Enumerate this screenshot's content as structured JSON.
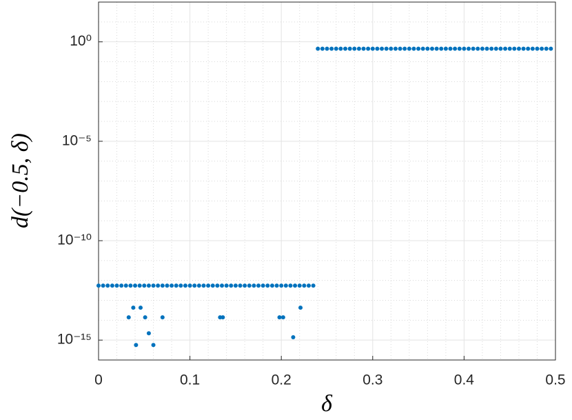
{
  "chart_data": {
    "type": "scatter",
    "xlabel": "δ",
    "ylabel": "d(−0.5, δ)",
    "xlim": [
      0,
      0.5
    ],
    "xticks": [
      0,
      0.1,
      0.2,
      0.3,
      0.4,
      0.5
    ],
    "xminorticks": [
      0.02,
      0.04,
      0.06,
      0.08,
      0.12,
      0.14,
      0.16,
      0.18,
      0.22,
      0.24,
      0.26,
      0.28,
      0.32,
      0.34,
      0.36,
      0.38,
      0.42,
      0.44,
      0.46,
      0.48
    ],
    "ylim": [
      1e-16,
      100
    ],
    "yscale": "log",
    "yticks": [
      {
        "value": 1e-15,
        "label": "10⁻¹⁵"
      },
      {
        "value": 1e-10,
        "label": "10⁻¹⁰"
      },
      {
        "value": 1e-05,
        "label": "10⁻⁵"
      },
      {
        "value": 1,
        "label": "10⁰"
      }
    ],
    "yminorticks": [
      1e-16,
      1e-14,
      1e-13,
      1e-12,
      1e-11,
      1e-09,
      1e-08,
      1e-07,
      1e-06,
      0.0001,
      0.001,
      0.01,
      0.1,
      10,
      100
    ],
    "grid": true,
    "minor_grid": true,
    "series": [
      {
        "color": "#0072bd",
        "x": [
          0,
          0.005,
          0.01,
          0.015,
          0.02,
          0.025,
          0.03,
          0.035,
          0.04,
          0.045,
          0.05,
          0.055,
          0.06,
          0.065,
          0.07,
          0.075,
          0.08,
          0.085,
          0.09,
          0.095,
          0.1,
          0.105,
          0.11,
          0.115,
          0.12,
          0.125,
          0.13,
          0.135,
          0.14,
          0.145,
          0.15,
          0.155,
          0.16,
          0.165,
          0.17,
          0.175,
          0.18,
          0.185,
          0.19,
          0.195,
          0.2,
          0.205,
          0.21,
          0.215,
          0.22,
          0.225,
          0.23,
          0.235,
          0.24,
          0.245,
          0.25,
          0.255,
          0.26,
          0.265,
          0.27,
          0.275,
          0.28,
          0.285,
          0.29,
          0.295,
          0.3,
          0.305,
          0.31,
          0.315,
          0.32,
          0.325,
          0.33,
          0.335,
          0.34,
          0.345,
          0.35,
          0.355,
          0.36,
          0.365,
          0.37,
          0.375,
          0.38,
          0.385,
          0.39,
          0.395,
          0.4,
          0.405,
          0.41,
          0.415,
          0.42,
          0.425,
          0.43,
          0.435,
          0.44,
          0.445,
          0.45,
          0.455,
          0.46,
          0.465,
          0.47,
          0.475,
          0.48,
          0.485,
          0.49,
          0.495,
          0.033,
          0.038,
          0.041,
          0.046,
          0.051,
          0.055,
          0.06,
          0.07,
          0.133,
          0.136,
          0.198,
          0.202,
          0.213,
          0.221
        ],
        "values": [
          5.5e-13,
          5.5e-13,
          5.5e-13,
          5.5e-13,
          5.5e-13,
          5.5e-13,
          5.5e-13,
          5.5e-13,
          5.5e-13,
          5.5e-13,
          5.5e-13,
          5.5e-13,
          5.5e-13,
          5.5e-13,
          5.5e-13,
          5.5e-13,
          5.5e-13,
          5.5e-13,
          5.5e-13,
          5.5e-13,
          5.5e-13,
          5.5e-13,
          5.5e-13,
          5.5e-13,
          5.5e-13,
          5.5e-13,
          5.5e-13,
          5.5e-13,
          5.5e-13,
          5.5e-13,
          5.5e-13,
          5.5e-13,
          5.5e-13,
          5.5e-13,
          5.5e-13,
          5.5e-13,
          5.5e-13,
          5.5e-13,
          5.5e-13,
          5.5e-13,
          5.5e-13,
          5.5e-13,
          5.5e-13,
          5.5e-13,
          5.5e-13,
          5.5e-13,
          5.5e-13,
          5.5e-13,
          0.45,
          0.45,
          0.45,
          0.45,
          0.45,
          0.45,
          0.45,
          0.45,
          0.45,
          0.45,
          0.45,
          0.45,
          0.45,
          0.45,
          0.45,
          0.45,
          0.45,
          0.45,
          0.45,
          0.45,
          0.45,
          0.45,
          0.45,
          0.45,
          0.45,
          0.45,
          0.45,
          0.45,
          0.45,
          0.45,
          0.45,
          0.45,
          0.45,
          0.45,
          0.45,
          0.45,
          0.45,
          0.45,
          0.45,
          0.45,
          0.45,
          0.45,
          0.45,
          0.45,
          0.45,
          0.45,
          0.45,
          0.45,
          0.45,
          0.45,
          0.45,
          0.45,
          1.4e-14,
          4.3e-14,
          5.7e-16,
          4.3e-14,
          1.4e-14,
          2.2e-15,
          5.7e-16,
          1.4e-14,
          1.4e-14,
          1.4e-14,
          1.4e-14,
          1.4e-14,
          1.4e-15,
          4.3e-14
        ]
      }
    ]
  }
}
